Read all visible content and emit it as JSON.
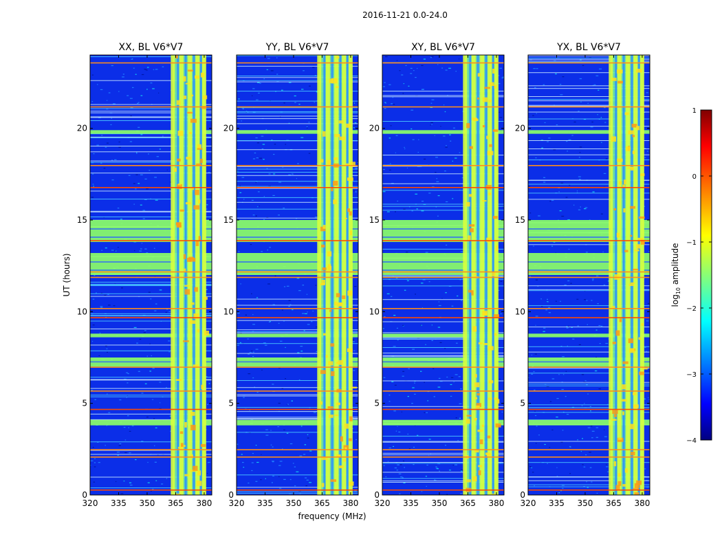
{
  "figure": {
    "suptitle": "2016-11-21 0.0-24.0",
    "xlabel": "frequency (MHz)",
    "ylabel": "UT (hours)"
  },
  "chart_data": [
    {
      "type": "heatmap",
      "title": "XX, BL V6*V7",
      "xlabel": "frequency (MHz)",
      "ylabel": "UT (hours)",
      "xlim": [
        320,
        384
      ],
      "ylim": [
        0,
        24
      ],
      "xticks": [
        "320",
        "335",
        "350",
        "365",
        "380"
      ],
      "yticks": [
        "0",
        "5",
        "10",
        "15",
        "20"
      ]
    },
    {
      "type": "heatmap",
      "title": "YY, BL V6*V7",
      "xlim": [
        320,
        384
      ],
      "ylim": [
        0,
        24
      ],
      "xticks": [
        "320",
        "335",
        "350",
        "365",
        "380"
      ],
      "yticks": [
        "0",
        "5",
        "10",
        "15",
        "20"
      ]
    },
    {
      "type": "heatmap",
      "title": "XY, BL V6*V7",
      "xlim": [
        320,
        384
      ],
      "ylim": [
        0,
        24
      ],
      "xticks": [
        "320",
        "335",
        "350",
        "365",
        "380"
      ],
      "yticks": [
        "0",
        "5",
        "10",
        "15",
        "20"
      ]
    },
    {
      "type": "heatmap",
      "title": "YX, BL V6*V7",
      "xlim": [
        320,
        384
      ],
      "ylim": [
        0,
        24
      ],
      "xticks": [
        "320",
        "335",
        "350",
        "365",
        "380"
      ],
      "yticks": [
        "0",
        "5",
        "10",
        "15",
        "20"
      ]
    }
  ],
  "colorbar": {
    "label_main": "log",
    "label_sub": "10",
    "label_rest": " amplitude",
    "range": [
      -4,
      1
    ],
    "ticks": [
      "1",
      "0",
      "−1",
      "−2",
      "−3",
      "−4"
    ],
    "colormap": "jet"
  },
  "features": {
    "bright_band_freq": [
      363.5,
      380.5
    ],
    "bright_columns_freq": [
      363.5,
      368.0,
      372.5,
      376.5,
      380.0
    ],
    "green_bands_ut": [
      [
        13.8,
        15.0
      ],
      [
        12.0,
        13.2
      ],
      [
        7.0,
        7.5
      ],
      [
        19.7,
        19.9
      ],
      [
        8.6,
        8.8
      ],
      [
        3.8,
        4.1
      ]
    ],
    "red_lines_ut": [
      13.9,
      12.2,
      11.9,
      9.7,
      7.0,
      5.7,
      4.7,
      2.5,
      2.1,
      0.3,
      18.0,
      21.2,
      16.8,
      10.2,
      23.6
    ]
  }
}
